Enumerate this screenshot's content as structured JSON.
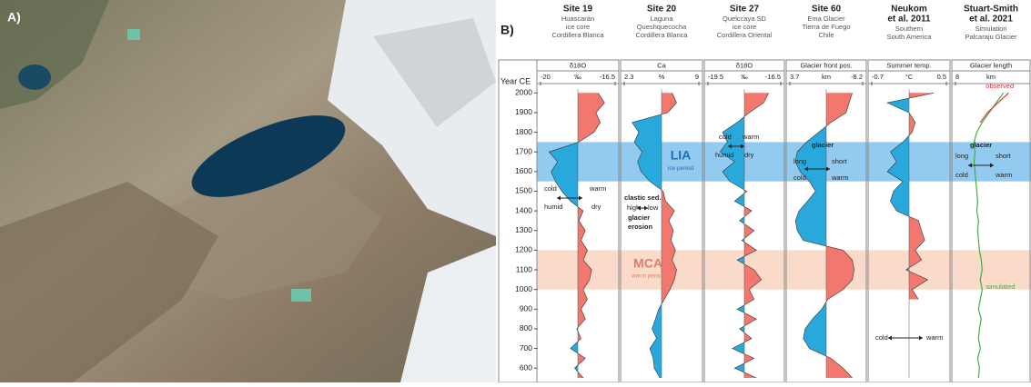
{
  "panel_a": {
    "label": "A)"
  },
  "panel_b": {
    "label": "B)",
    "year_axis": {
      "title": "Year CE",
      "ylim": [
        550,
        2020
      ],
      "yticks": [
        2000,
        1900,
        1800,
        1700,
        1600,
        1500,
        1400,
        1300,
        1200,
        1100,
        1000,
        900,
        800,
        700,
        600
      ]
    },
    "periods": [
      {
        "label": "LIA",
        "note": "ice period",
        "range": [
          1550,
          1750
        ],
        "color": "#6fb8ea",
        "text_color": "#1d6fb8"
      },
      {
        "label": "MCA",
        "note": "warm period",
        "range": [
          1000,
          1200
        ],
        "color": "#f8cdb6",
        "text_color": "#d9826a"
      }
    ]
  },
  "chart_data": [
    {
      "type": "area",
      "title": [
        "Site 19"
      ],
      "subtitle": [
        "Huascarán",
        "ice core",
        "Cordillera Blanca"
      ],
      "variable": "δ18O",
      "unit": "‰",
      "xlim": [
        -20,
        -16.5
      ],
      "xticks": [
        -20,
        -16.5
      ],
      "colors": [
        "#29a8dc",
        "#f2776e"
      ],
      "x": [
        550,
        600,
        650,
        700,
        750,
        800,
        850,
        900,
        950,
        1000,
        1050,
        1100,
        1150,
        1200,
        1250,
        1300,
        1350,
        1400,
        1450,
        1500,
        1550,
        1600,
        1650,
        1700,
        1750,
        1800,
        1850,
        1900,
        1950,
        2000
      ],
      "values": [
        -18.0,
        -18.4,
        -17.9,
        -18.6,
        -18.1,
        -18.3,
        -17.9,
        -18.1,
        -17.8,
        -18.0,
        -17.7,
        -17.6,
        -18.0,
        -17.8,
        -18.1,
        -17.9,
        -18.2,
        -18.0,
        -18.6,
        -19.0,
        -19.3,
        -19.5,
        -19.2,
        -19.6,
        -18.2,
        -17.5,
        -17.2,
        -17.4,
        -17.0,
        -17.3
      ],
      "annotations": [
        "cold",
        "warm",
        "humid",
        "dry"
      ]
    },
    {
      "type": "area",
      "title": [
        "Site 20"
      ],
      "subtitle": [
        "Laguna",
        "Queshquecocha",
        "Cordillera Blanca"
      ],
      "variable": "Ca",
      "unit": "%",
      "xlim": [
        2.3,
        9
      ],
      "xticks": [
        2.3,
        9
      ],
      "colors": [
        "#29a8dc",
        "#f2776e"
      ],
      "x": [
        550,
        600,
        650,
        700,
        750,
        800,
        850,
        900,
        950,
        1000,
        1050,
        1100,
        1150,
        1200,
        1250,
        1300,
        1350,
        1400,
        1450,
        1500,
        1550,
        1600,
        1650,
        1700,
        1750,
        1800,
        1850,
        1900,
        1950,
        2000
      ],
      "values": [
        5.5,
        5.0,
        4.9,
        4.6,
        5.2,
        4.8,
        5.1,
        5.4,
        5.9,
        6.4,
        6.8,
        7.0,
        6.6,
        6.9,
        6.5,
        6.7,
        6.3,
        6.8,
        6.0,
        5.8,
        4.6,
        3.8,
        3.5,
        3.9,
        3.2,
        3.6,
        3.0,
        6.2,
        7.0,
        6.6
      ],
      "annotations": [
        "clastic sed.",
        "high",
        "low",
        "glacier",
        "erosion"
      ]
    },
    {
      "type": "area",
      "title": [
        "Site 27"
      ],
      "subtitle": [
        "Quelccaya SD",
        "ice core",
        "Cordillera Oriental"
      ],
      "variable": "δ18O",
      "unit": "‰",
      "xlim": [
        -19.5,
        -16.5
      ],
      "xticks": [
        -19.5,
        -16.5
      ],
      "colors": [
        "#29a8dc",
        "#f2776e"
      ],
      "x": [
        550,
        600,
        650,
        700,
        750,
        800,
        850,
        900,
        950,
        1000,
        1050,
        1100,
        1150,
        1200,
        1250,
        1300,
        1350,
        1400,
        1450,
        1500,
        1550,
        1600,
        1650,
        1700,
        1750,
        1800,
        1850,
        1900,
        1950,
        2000
      ],
      "values": [
        -17.5,
        -18.4,
        -17.6,
        -18.5,
        -17.7,
        -18.2,
        -17.5,
        -18.3,
        -17.6,
        -17.8,
        -17.3,
        -17.6,
        -18.3,
        -17.5,
        -18.1,
        -17.6,
        -18.2,
        -17.7,
        -18.4,
        -17.9,
        -18.6,
        -18.9,
        -18.4,
        -19.0,
        -18.7,
        -18.9,
        -18.3,
        -17.8,
        -17.2,
        -17.0
      ],
      "annotations": [
        "cold",
        "warm",
        "humid",
        "dry"
      ]
    },
    {
      "type": "area",
      "title": [
        "Site 60"
      ],
      "subtitle": [
        "Ema Glacier",
        "Tierra de Fuego",
        "Chile"
      ],
      "variable": "Glacier front pos.",
      "unit": "km",
      "xlim": [
        3.7,
        -8.2
      ],
      "xticks": [
        3.7,
        -8.2
      ],
      "colors": [
        "#29a8dc",
        "#f2776e"
      ],
      "x": [
        550,
        600,
        650,
        700,
        750,
        800,
        850,
        900,
        950,
        1000,
        1050,
        1100,
        1150,
        1200,
        1250,
        1300,
        1350,
        1400,
        1450,
        1500,
        1550,
        1600,
        1650,
        1700,
        1750,
        1800,
        1850,
        1900,
        1950,
        2000
      ],
      "values": [
        -6.5,
        -5.0,
        -3.0,
        0.5,
        1.5,
        1.2,
        0.0,
        -1.5,
        -2.5,
        -5.0,
        -6.5,
        -6.8,
        -6.5,
        -5.0,
        1.5,
        2.5,
        2.8,
        2.2,
        0.8,
        -0.5,
        0.5,
        2.0,
        2.8,
        2.5,
        1.0,
        -1.0,
        -3.0,
        -5.5,
        -6.0,
        -6.5
      ],
      "annotations": [
        "glacier",
        "long",
        "short",
        "cold",
        "warm"
      ]
    },
    {
      "type": "area",
      "title": [
        "Neukom",
        "et al. 2011"
      ],
      "subtitle": [
        "Southern",
        "South America"
      ],
      "variable": "Summer temp.",
      "unit": "°C",
      "xlim": [
        -0.7,
        0.5
      ],
      "xticks": [
        -0.7,
        0.5
      ],
      "colors": [
        "#29a8dc",
        "#f2776e"
      ],
      "x": [
        550,
        600,
        650,
        700,
        750,
        800,
        850,
        900,
        950,
        1000,
        1050,
        1100,
        1150,
        1200,
        1250,
        1300,
        1350,
        1400,
        1450,
        1500,
        1550,
        1600,
        1650,
        1700,
        1750,
        1800,
        1850,
        1900,
        1950,
        2000
      ],
      "values": [
        null,
        null,
        null,
        null,
        null,
        null,
        null,
        null,
        0.05,
        -0.05,
        0.2,
        -0.15,
        0.1,
        0.0,
        0.15,
        0.1,
        0.05,
        -0.3,
        -0.4,
        -0.35,
        -0.2,
        -0.45,
        -0.3,
        -0.4,
        -0.2,
        -0.05,
        0.0,
        -0.1,
        -0.45,
        0.3
      ],
      "annotations": [
        "cold",
        "warm"
      ]
    },
    {
      "type": "line",
      "title": [
        "Stuart-Smith",
        "et al. 2021"
      ],
      "subtitle": [
        "Simulation",
        "Palcaraju Glacier"
      ],
      "variable": "Glacier length",
      "unit": "km",
      "xlim": [
        8,
        0
      ],
      "xticks": [
        8
      ],
      "x": [
        550,
        600,
        650,
        700,
        750,
        800,
        850,
        900,
        950,
        1000,
        1050,
        1100,
        1150,
        1200,
        1250,
        1300,
        1350,
        1400,
        1450,
        1500,
        1550,
        1600,
        1650,
        1700,
        1750,
        1800,
        1850,
        1900,
        1950,
        2000
      ],
      "series": [
        {
          "name": "simulated",
          "color": "#3cb043",
          "values": [
            5.4,
            5.3,
            5.5,
            5.2,
            5.4,
            5.3,
            5.1,
            5.4,
            5.2,
            5.0,
            5.2,
            5.0,
            5.1,
            5.3,
            5.4,
            5.5,
            5.4,
            5.6,
            5.5,
            5.6,
            5.7,
            5.8,
            5.9,
            5.8,
            5.9,
            5.6,
            5.0,
            4.2,
            3.4,
            2.6
          ]
        },
        {
          "name": "observed",
          "color": "#e0343a",
          "values": [
            null,
            null,
            null,
            null,
            null,
            null,
            null,
            null,
            null,
            null,
            null,
            null,
            null,
            null,
            null,
            null,
            null,
            null,
            null,
            null,
            null,
            null,
            null,
            null,
            null,
            null,
            5.2,
            4.4,
            3.2,
            2.0
          ]
        }
      ],
      "annotations": [
        "glacier",
        "long",
        "short",
        "cold",
        "warm"
      ]
    }
  ]
}
